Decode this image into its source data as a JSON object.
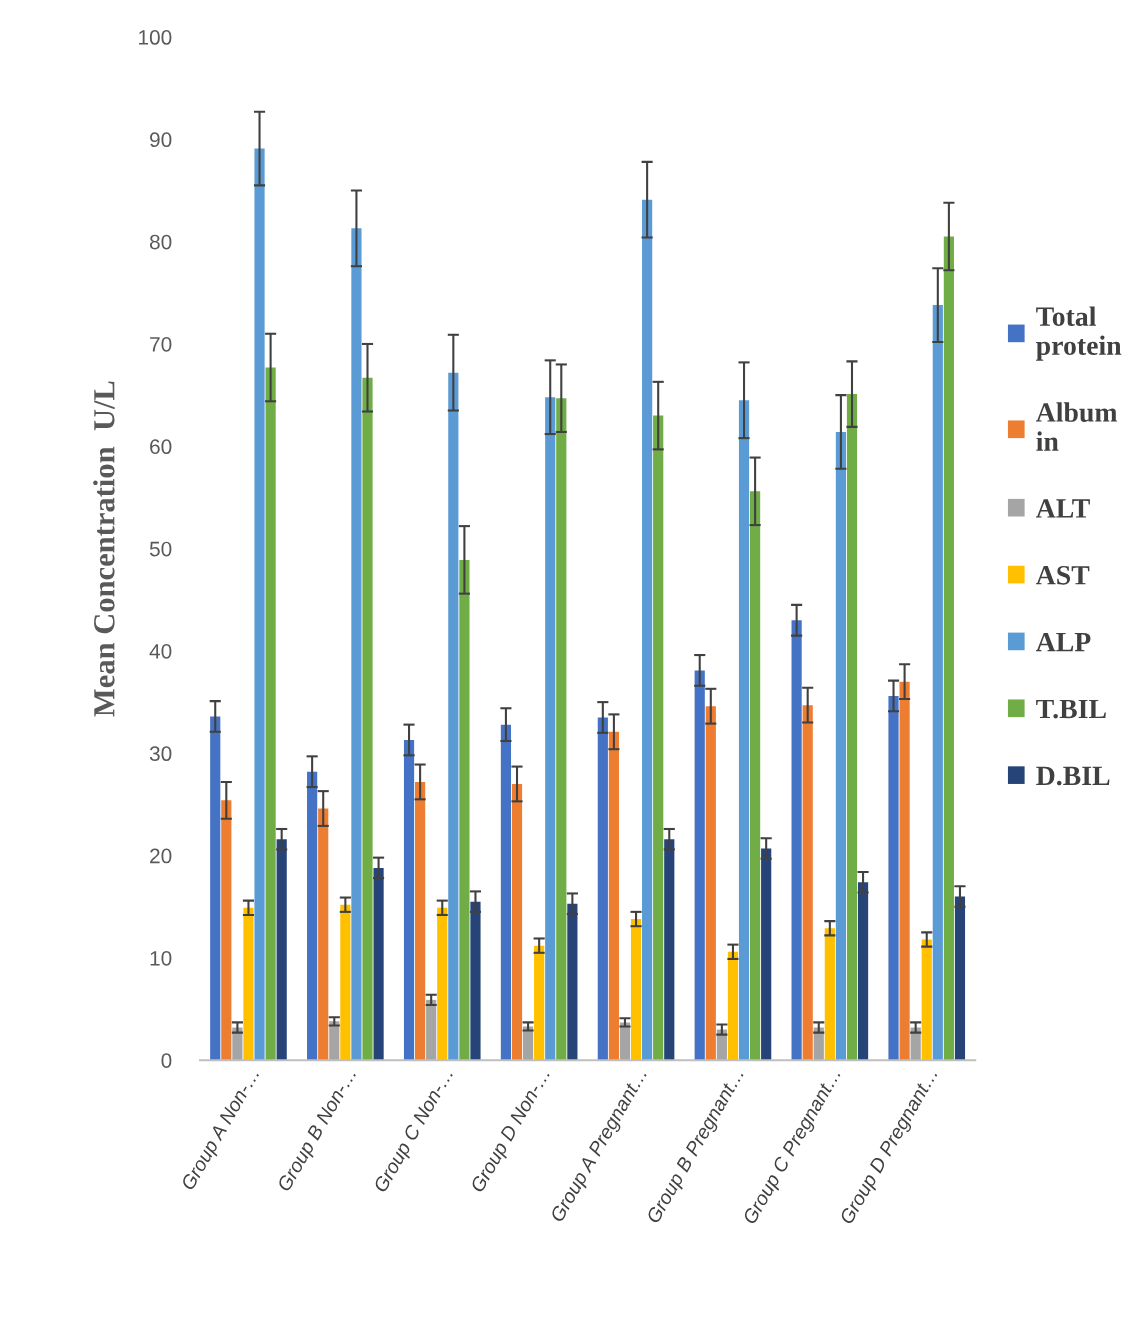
{
  "chart_data": {
    "type": "bar",
    "ylabel": "Mean Concentration  U/L",
    "categories": [
      "Group A Non-…",
      "Group B Non-…",
      "Group C Non-…",
      "Group D Non-…",
      "Group A Pregnant…",
      "Group B Pregnant…",
      "Group C Pregnant…",
      "Group D Pregnant…"
    ],
    "series": [
      {
        "name": "Total\nprotein",
        "color": "#4472c4",
        "values": [
          33.6,
          28.2,
          31.3,
          32.8,
          33.5,
          38.1,
          43.0,
          35.6
        ],
        "errors": [
          1.5,
          1.5,
          1.5,
          1.6,
          1.5,
          1.5,
          1.5,
          1.5
        ]
      },
      {
        "name": "Album\nin",
        "color": "#ed7d31",
        "values": [
          25.4,
          24.6,
          27.2,
          27.0,
          32.1,
          34.6,
          34.7,
          37.0
        ],
        "errors": [
          1.8,
          1.7,
          1.7,
          1.7,
          1.7,
          1.7,
          1.7,
          1.7
        ]
      },
      {
        "name": "ALT",
        "color": "#a5a5a5",
        "values": [
          3.2,
          3.8,
          5.9,
          3.3,
          3.7,
          3.0,
          3.2,
          3.2
        ],
        "errors": [
          0.5,
          0.4,
          0.5,
          0.4,
          0.4,
          0.5,
          0.5,
          0.5
        ]
      },
      {
        "name": "AST",
        "color": "#ffc000",
        "values": [
          14.9,
          15.2,
          14.9,
          11.2,
          13.8,
          10.6,
          12.9,
          11.8
        ],
        "errors": [
          0.7,
          0.7,
          0.7,
          0.7,
          0.7,
          0.7,
          0.7,
          0.7
        ]
      },
      {
        "name": "ALP",
        "color": "#5b9bd5",
        "values": [
          89.1,
          81.3,
          67.2,
          64.8,
          84.1,
          64.5,
          61.4,
          73.8
        ],
        "errors": [
          3.6,
          3.7,
          3.7,
          3.6,
          3.7,
          3.7,
          3.6,
          3.6
        ]
      },
      {
        "name": "T.BIL",
        "color": "#70ad47",
        "values": [
          67.7,
          66.7,
          48.9,
          64.7,
          63.0,
          55.6,
          65.1,
          80.5
        ],
        "errors": [
          3.3,
          3.3,
          3.3,
          3.3,
          3.3,
          3.3,
          3.2,
          3.3
        ]
      },
      {
        "name": "D.BIL",
        "color": "#264478",
        "values": [
          21.6,
          18.8,
          15.5,
          15.3,
          21.6,
          20.7,
          17.4,
          16.0
        ],
        "errors": [
          1.0,
          1.0,
          1.0,
          1.0,
          1.0,
          1.0,
          1.0,
          1.0
        ]
      }
    ],
    "ylim": [
      0,
      100
    ],
    "yticks": [
      0,
      10,
      20,
      30,
      40,
      50,
      60,
      70,
      80,
      90,
      100
    ],
    "grid": false,
    "legend": "right"
  }
}
